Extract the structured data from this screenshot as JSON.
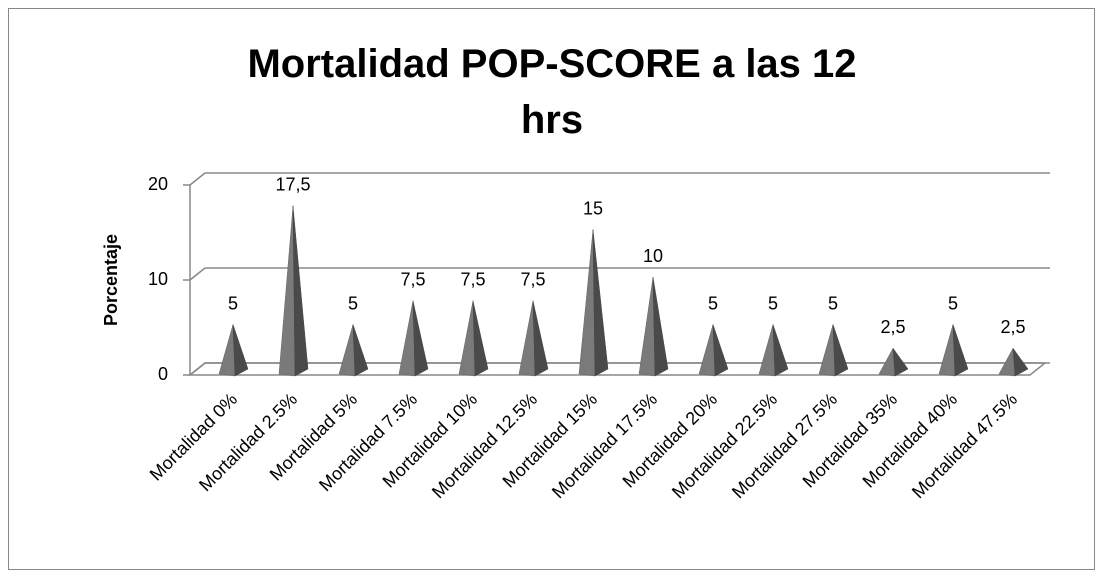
{
  "chart_data": {
    "type": "pyramid3d",
    "title": "Mortalidad POP-SCORE a las 12 hrs",
    "y_label": "Porcentaje",
    "categories": [
      "Mortalidad 0%",
      "Mortalidad 2.5%",
      "Mortalidad 5%",
      "Mortalidad 7.5%",
      "Mortalidad 10%",
      "Mortalidad 12.5%",
      "Mortalidad 15%",
      "Mortalidad 17.5%",
      "Mortalidad 20%",
      "Mortalidad 22.5%",
      "Mortalidad 27.5%",
      "Mortalidad 35%",
      "Mortalidad 40%",
      "Mortalidad 47.5%"
    ],
    "values": [
      5,
      17.5,
      5,
      7.5,
      7.5,
      7.5,
      15,
      10,
      5,
      5,
      5,
      2.5,
      5,
      2.5
    ],
    "value_labels": [
      "5",
      "17,5",
      "5",
      "7,5",
      "7,5",
      "7,5",
      "15",
      "10",
      "5",
      "5",
      "5",
      "2,5",
      "5",
      "2,5"
    ],
    "color": "#7a7a7a",
    "ylim": [
      0,
      20
    ],
    "yticks": [
      0,
      10,
      20
    ],
    "grid": true
  }
}
